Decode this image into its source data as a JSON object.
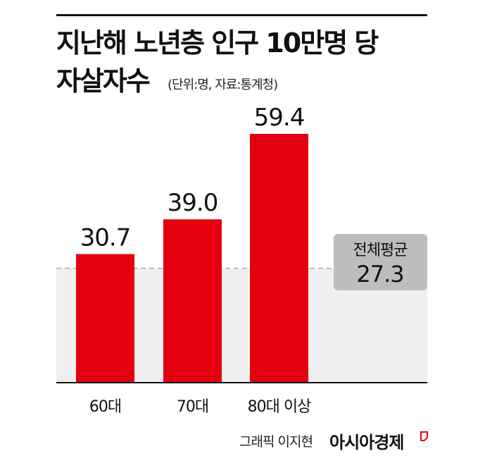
{
  "header": {
    "title_line1": "지난해 노년층 인구 10만명 당",
    "title_line2": "자살자수",
    "subtitle": "(단위:명, 자료:통계청)"
  },
  "footer": {
    "credit": "그래픽 이지현",
    "brand": "아시아경제"
  },
  "colors": {
    "bar": "#e3000f",
    "average_band": "#efefef",
    "average_badge": "#bdbdbd",
    "average_line": "#aaaaaa"
  },
  "chart_data": {
    "type": "bar",
    "title": "지난해 노년층 인구 10만명 당 자살자수",
    "subtitle": "(단위:명, 자료:통계청)",
    "categories": [
      "60대",
      "70대",
      "80대 이상"
    ],
    "values": [
      30.7,
      39.0,
      59.4
    ],
    "value_labels": [
      "30.7",
      "39.0",
      "59.4"
    ],
    "ylim": [
      0,
      65
    ],
    "grid": false,
    "legend": "none",
    "reference_line": {
      "label": "전체평균",
      "value": 27.3,
      "value_label": "27.3"
    }
  }
}
